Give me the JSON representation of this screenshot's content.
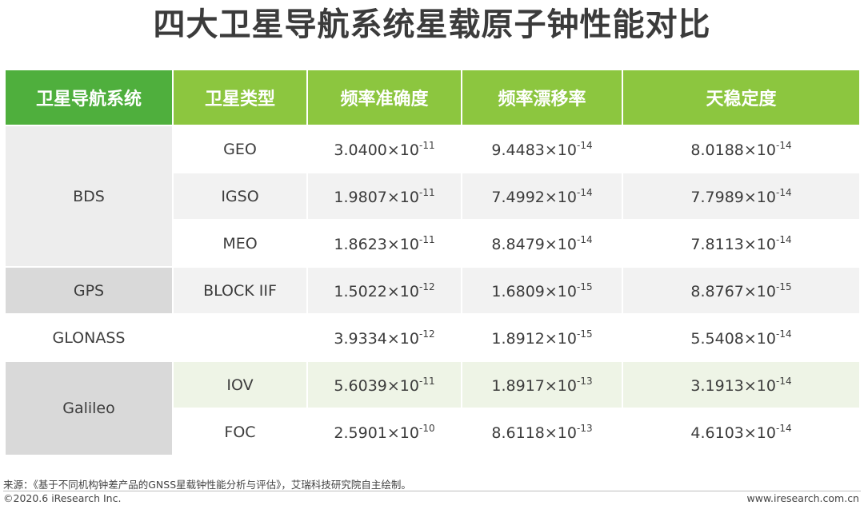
{
  "title": "四大卫星导航系统星载原子钟性能对比",
  "table": {
    "headers": [
      "卫星导航系统",
      "卫星类型",
      "频率准确度",
      "频率漂移率",
      "天稳定度"
    ],
    "rows": [
      {
        "system": "BDS",
        "type": "GEO",
        "accuracy": {
          "base": "3.0400×10",
          "exp": "-11"
        },
        "drift": {
          "base": "9.4483×10",
          "exp": "-14"
        },
        "stability": {
          "base": "8.0188×10",
          "exp": "-14"
        }
      },
      {
        "system": "BDS",
        "type": "IGSO",
        "accuracy": {
          "base": "1.9807×10",
          "exp": "-11"
        },
        "drift": {
          "base": "7.4992×10",
          "exp": "-14"
        },
        "stability": {
          "base": "7.7989×10",
          "exp": "-14"
        }
      },
      {
        "system": "BDS",
        "type": "MEO",
        "accuracy": {
          "base": "1.8623×10",
          "exp": "-11"
        },
        "drift": {
          "base": "8.8479×10",
          "exp": "-14"
        },
        "stability": {
          "base": "7.8113×10",
          "exp": "-14"
        }
      },
      {
        "system": "GPS",
        "type": "BLOCK IIF",
        "accuracy": {
          "base": "1.5022×10",
          "exp": "-12"
        },
        "drift": {
          "base": "1.6809×10",
          "exp": "-15"
        },
        "stability": {
          "base": "8.8767×10",
          "exp": "-15"
        }
      },
      {
        "system": "GLONASS",
        "type": "",
        "accuracy": {
          "base": "3.9334×10",
          "exp": "-12"
        },
        "drift": {
          "base": "1.8912×10",
          "exp": "-15"
        },
        "stability": {
          "base": "5.5408×10",
          "exp": "-14"
        }
      },
      {
        "system": "Galileo",
        "type": "IOV",
        "accuracy": {
          "base": "5.6039×10",
          "exp": "-11"
        },
        "drift": {
          "base": "1.8917×10",
          "exp": "-13"
        },
        "stability": {
          "base": "3.1913×10",
          "exp": "-14"
        }
      },
      {
        "system": "Galileo",
        "type": "FOC",
        "accuracy": {
          "base": "2.5901×10",
          "exp": "-10"
        },
        "drift": {
          "base": "8.6118×10",
          "exp": "-13"
        },
        "stability": {
          "base": "4.6103×10",
          "exp": "-14"
        }
      }
    ]
  },
  "footer": {
    "source": "来源：《基于不同机构钟差产品的GNSS星载钟性能分析与评估》，艾瑞科技研究院自主绘制。",
    "copyright": "©2020.6 iResearch Inc.",
    "website": "www.iresearch.com.cn"
  }
}
